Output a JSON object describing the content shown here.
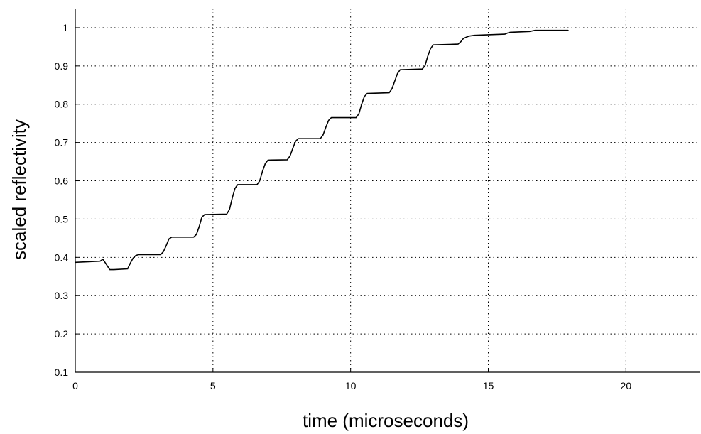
{
  "chart_data": {
    "type": "line",
    "title": "",
    "xlabel": "time (microseconds)",
    "ylabel": "scaled reflectivity",
    "xlim": [
      0,
      22.7
    ],
    "ylim": [
      0.1,
      1.05
    ],
    "xticks": [
      0,
      5,
      10,
      15,
      20
    ],
    "xtick_labels": [
      "0",
      "5",
      "10",
      "15",
      "20"
    ],
    "yticks": [
      0.1,
      0.2,
      0.3,
      0.4,
      0.5,
      0.6,
      0.7,
      0.8,
      0.9,
      1.0
    ],
    "ytick_labels": [
      "0.1",
      "0.2",
      "0.3",
      "0.4",
      "0.5",
      "0.6",
      "0.7",
      "0.8",
      "0.9",
      "1"
    ],
    "grid": true,
    "colors": {
      "line": "#000000",
      "grid": "#000000",
      "background": "#ffffff"
    },
    "series": [
      {
        "x": [
          0,
          0.9,
          1.0,
          1.1,
          1.25,
          1.4,
          1.9,
          2.0,
          2.1,
          2.2,
          2.3,
          3.1,
          3.2,
          3.3,
          3.4,
          3.5,
          4.3,
          4.4,
          4.5,
          4.6,
          4.7,
          5.5,
          5.6,
          5.7,
          5.8,
          5.9,
          6.6,
          6.7,
          6.8,
          6.9,
          7.0,
          7.7,
          7.8,
          7.9,
          8.0,
          8.1,
          8.9,
          9.0,
          9.1,
          9.2,
          9.3,
          10.2,
          10.3,
          10.4,
          10.5,
          10.6,
          11.4,
          11.5,
          11.6,
          11.7,
          11.8,
          12.6,
          12.7,
          12.8,
          12.9,
          13.0,
          13.9,
          14.0,
          14.1,
          14.3,
          14.5,
          15.6,
          15.7,
          15.8,
          16.5,
          16.7,
          17.9
        ],
        "y": [
          0.387,
          0.39,
          0.395,
          0.385,
          0.368,
          0.368,
          0.37,
          0.385,
          0.398,
          0.405,
          0.407,
          0.407,
          0.415,
          0.43,
          0.448,
          0.453,
          0.453,
          0.46,
          0.48,
          0.505,
          0.512,
          0.513,
          0.525,
          0.555,
          0.58,
          0.59,
          0.59,
          0.6,
          0.625,
          0.645,
          0.654,
          0.655,
          0.665,
          0.685,
          0.703,
          0.71,
          0.71,
          0.72,
          0.74,
          0.758,
          0.765,
          0.765,
          0.775,
          0.8,
          0.82,
          0.828,
          0.83,
          0.84,
          0.86,
          0.88,
          0.89,
          0.892,
          0.9,
          0.925,
          0.945,
          0.955,
          0.957,
          0.963,
          0.972,
          0.978,
          0.98,
          0.983,
          0.986,
          0.988,
          0.99,
          0.993,
          0.993
        ]
      }
    ]
  }
}
